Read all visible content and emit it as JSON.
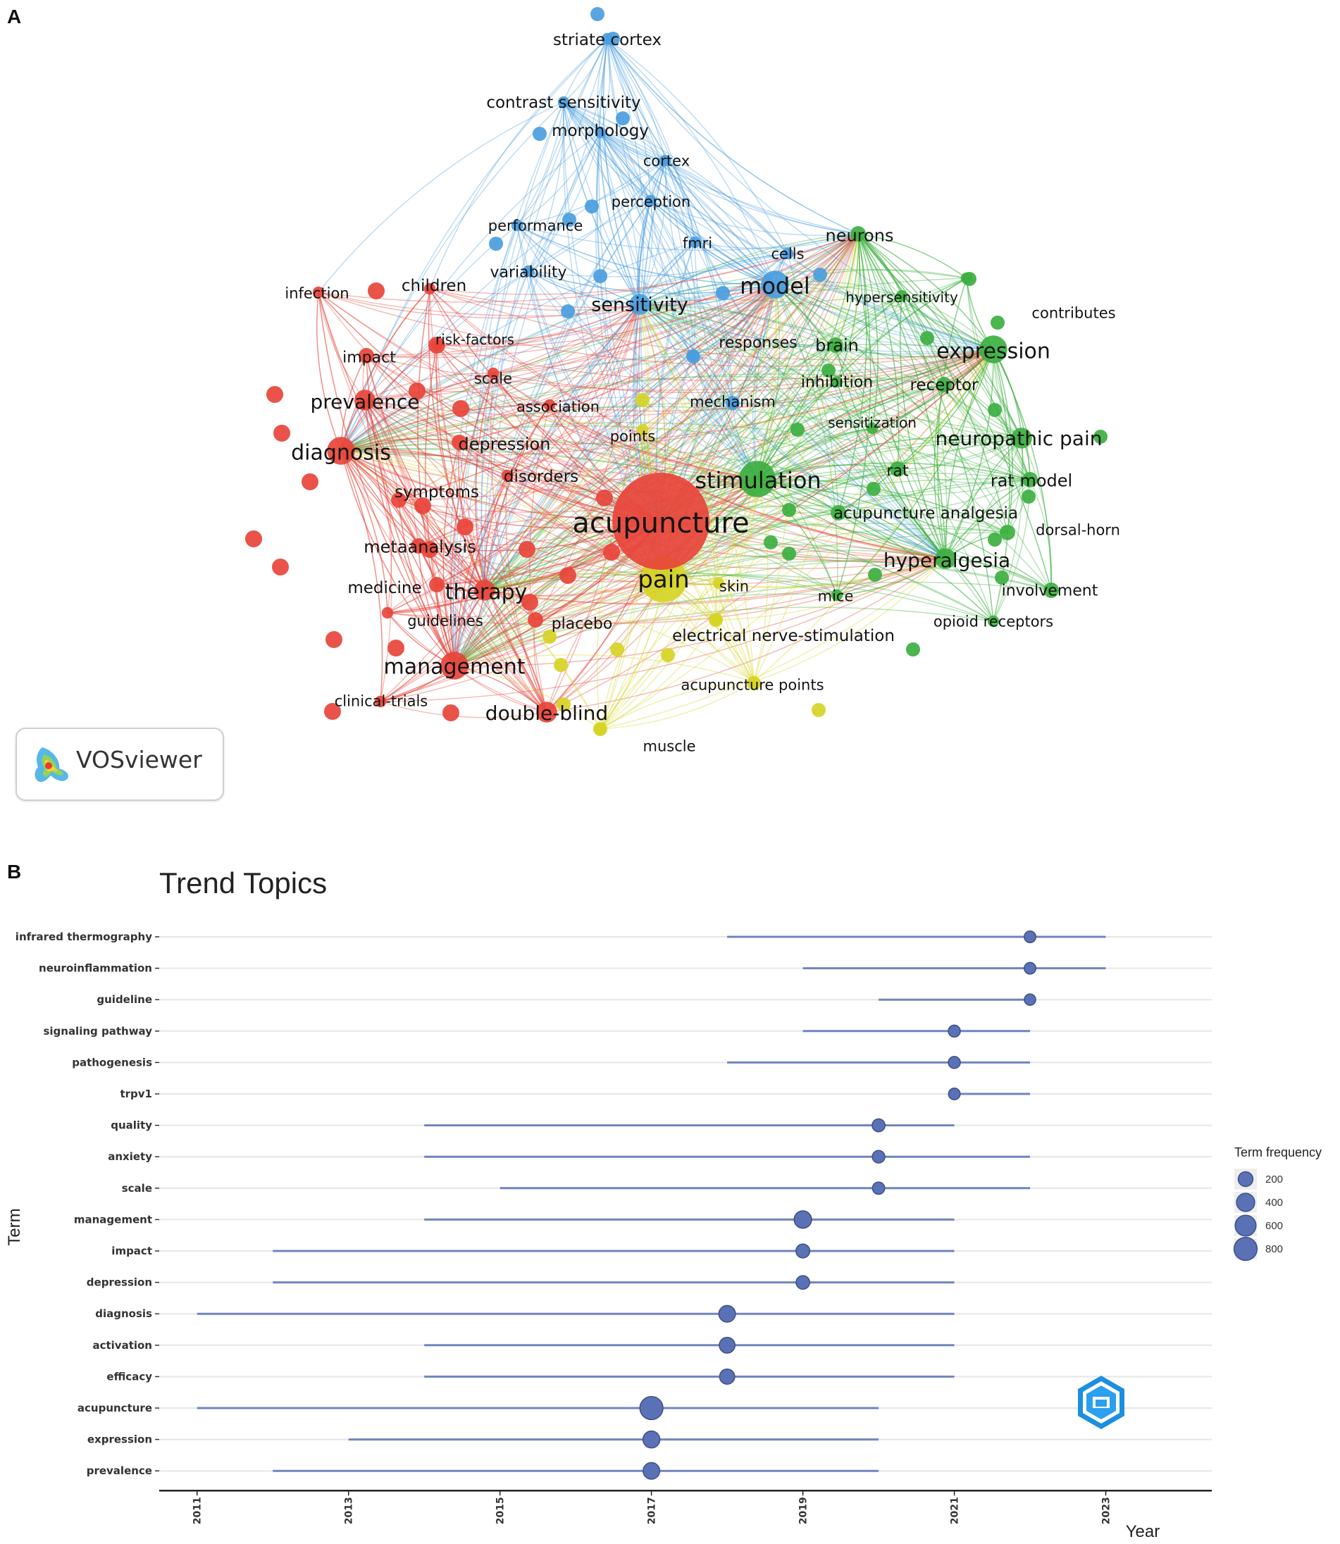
{
  "panels": {
    "a": "A",
    "b": "B"
  },
  "colors": {
    "red": "#e8443a",
    "green": "#3cb040",
    "blue": "#4a9de0",
    "yellow": "#d6d424",
    "trend": "#5a72b5"
  },
  "vosviewer": {
    "label": "VOSviewer",
    "icon": "vosviewer-logo-icon"
  },
  "watermark": {
    "icon": "shield-badge-icon"
  },
  "chart_data": [
    {
      "type": "network",
      "nodes": [
        {
          "id": "acupuncture",
          "label": "acupuncture",
          "cluster": "red",
          "weight": 10
        },
        {
          "id": "pain",
          "label": "pain",
          "cluster": "yellow",
          "weight": 7
        },
        {
          "id": "stimulation",
          "label": "stimulation",
          "cluster": "green",
          "weight": 6
        },
        {
          "id": "model",
          "label": "model",
          "cluster": "blue",
          "weight": 5
        },
        {
          "id": "expression",
          "label": "expression",
          "cluster": "green",
          "weight": 5
        },
        {
          "id": "management",
          "label": "management",
          "cluster": "red",
          "weight": 5
        },
        {
          "id": "diagnosis",
          "label": "diagnosis",
          "cluster": "red",
          "weight": 5
        },
        {
          "id": "prevalence",
          "label": "prevalence",
          "cluster": "red",
          "weight": 4
        },
        {
          "id": "therapy",
          "label": "therapy",
          "cluster": "red",
          "weight": 4
        },
        {
          "id": "hyperalgesia",
          "label": "hyperalgesia",
          "cluster": "green",
          "weight": 4
        },
        {
          "id": "neuropathic-pain",
          "label": "neuropathic pain",
          "cluster": "green",
          "weight": 4
        },
        {
          "id": "double-blind",
          "label": "double-blind",
          "cluster": "red",
          "weight": 4
        },
        {
          "id": "sensitivity",
          "label": "sensitivity",
          "cluster": "blue",
          "weight": 4
        },
        {
          "id": "neurons",
          "label": "neurons",
          "cluster": "green",
          "weight": 3
        },
        {
          "id": "rat-model",
          "label": "rat model",
          "cluster": "green",
          "weight": 3
        },
        {
          "id": "metaanalysis",
          "label": "metaanalysis",
          "cluster": "red",
          "weight": 3
        },
        {
          "id": "contrast-sensitivity",
          "label": "contrast sensitivity",
          "cluster": "blue",
          "weight": 2
        },
        {
          "id": "striate-cortex",
          "label": "striate cortex",
          "cluster": "blue",
          "weight": 2
        },
        {
          "id": "morphology",
          "label": "morphology",
          "cluster": "blue",
          "weight": 2
        },
        {
          "id": "cortex",
          "label": "cortex",
          "cluster": "blue",
          "weight": 2
        },
        {
          "id": "perception",
          "label": "perception",
          "cluster": "blue",
          "weight": 2
        },
        {
          "id": "performance",
          "label": "performance",
          "cluster": "blue",
          "weight": 2
        },
        {
          "id": "fmri",
          "label": "fmri",
          "cluster": "blue",
          "weight": 2
        },
        {
          "id": "cells",
          "label": "cells",
          "cluster": "blue",
          "weight": 2
        },
        {
          "id": "variability",
          "label": "variability",
          "cluster": "blue",
          "weight": 2
        },
        {
          "id": "responses",
          "label": "responses",
          "cluster": "blue",
          "weight": 2
        },
        {
          "id": "mechanism",
          "label": "mechanism",
          "cluster": "blue",
          "weight": 2
        },
        {
          "id": "hypersensitivity",
          "label": "hypersensitivity",
          "cluster": "green",
          "weight": 2
        },
        {
          "id": "contributes",
          "label": "contributes",
          "cluster": "green",
          "weight": 2
        },
        {
          "id": "brain",
          "label": "brain",
          "cluster": "green",
          "weight": 3
        },
        {
          "id": "inhibition",
          "label": "inhibition",
          "cluster": "green",
          "weight": 2
        },
        {
          "id": "receptor",
          "label": "receptor",
          "cluster": "green",
          "weight": 3
        },
        {
          "id": "sensitization",
          "label": "sensitization",
          "cluster": "green",
          "weight": 2
        },
        {
          "id": "rat",
          "label": "rat",
          "cluster": "green",
          "weight": 3
        },
        {
          "id": "acupuncture-analgesia",
          "label": "acupuncture analgesia",
          "cluster": "green",
          "weight": 3
        },
        {
          "id": "dorsal-horn",
          "label": "dorsal-horn",
          "cluster": "green",
          "weight": 3
        },
        {
          "id": "involvement",
          "label": "involvement",
          "cluster": "green",
          "weight": 3
        },
        {
          "id": "mice",
          "label": "mice",
          "cluster": "green",
          "weight": 2
        },
        {
          "id": "opioid-receptors",
          "label": "opioid receptors",
          "cluster": "green",
          "weight": 2
        },
        {
          "id": "infection",
          "label": "infection",
          "cluster": "red",
          "weight": 2
        },
        {
          "id": "children",
          "label": "children",
          "cluster": "red",
          "weight": 2
        },
        {
          "id": "impact",
          "label": "impact",
          "cluster": "red",
          "weight": 3
        },
        {
          "id": "risk-factors",
          "label": "risk-factors",
          "cluster": "red",
          "weight": 2
        },
        {
          "id": "scale",
          "label": "scale",
          "cluster": "red",
          "weight": 2
        },
        {
          "id": "association",
          "label": "association",
          "cluster": "red",
          "weight": 2
        },
        {
          "id": "depression",
          "label": "depression",
          "cluster": "red",
          "weight": 3
        },
        {
          "id": "disorders",
          "label": "disorders",
          "cluster": "red",
          "weight": 2
        },
        {
          "id": "symptoms",
          "label": "symptoms",
          "cluster": "red",
          "weight": 3
        },
        {
          "id": "medicine",
          "label": "medicine",
          "cluster": "red",
          "weight": 3
        },
        {
          "id": "guidelines",
          "label": "guidelines",
          "cluster": "red",
          "weight": 2
        },
        {
          "id": "placebo",
          "label": "placebo",
          "cluster": "red",
          "weight": 3
        },
        {
          "id": "clinical-trials",
          "label": "clinical-trials",
          "cluster": "red",
          "weight": 2
        },
        {
          "id": "points",
          "label": "points",
          "cluster": "yellow",
          "weight": 2
        },
        {
          "id": "skin",
          "label": "skin",
          "cluster": "yellow",
          "weight": 2
        },
        {
          "id": "electrical-nerve-stimulation",
          "label": "electrical nerve-stimulation",
          "cluster": "yellow",
          "weight": 2
        },
        {
          "id": "acupuncture-points",
          "label": "acupuncture points",
          "cluster": "yellow",
          "weight": 2
        },
        {
          "id": "muscle",
          "label": "muscle",
          "cluster": "yellow",
          "weight": 2
        }
      ]
    },
    {
      "type": "dot-range",
      "title": "Trend Topics",
      "ylabel": "Term",
      "xlabel": "Year",
      "xlim": [
        2010.5,
        2024.4
      ],
      "xticks": [
        2011,
        2013,
        2015,
        2017,
        2019,
        2021,
        2023
      ],
      "legend": {
        "title": "Term frequency",
        "position": "right",
        "values": [
          200,
          400,
          600,
          800
        ]
      },
      "terms": [
        {
          "term": "infrared thermography",
          "start": 2018,
          "median": 2022,
          "end": 2023,
          "freq": 80
        },
        {
          "term": "neuroinflammation",
          "start": 2019,
          "median": 2022,
          "end": 2023,
          "freq": 80
        },
        {
          "term": "guideline",
          "start": 2020,
          "median": 2022,
          "end": 2022,
          "freq": 70
        },
        {
          "term": "signaling pathway",
          "start": 2019,
          "median": 2021,
          "end": 2022,
          "freq": 90
        },
        {
          "term": "pathogenesis",
          "start": 2018,
          "median": 2021,
          "end": 2022,
          "freq": 90
        },
        {
          "term": "trpv1",
          "start": 2021,
          "median": 2021,
          "end": 2022,
          "freq": 80
        },
        {
          "term": "quality",
          "start": 2014,
          "median": 2020,
          "end": 2021,
          "freq": 120
        },
        {
          "term": "anxiety",
          "start": 2014,
          "median": 2020,
          "end": 2022,
          "freq": 110
        },
        {
          "term": "scale",
          "start": 2015,
          "median": 2020,
          "end": 2022,
          "freq": 100
        },
        {
          "term": "management",
          "start": 2014,
          "median": 2019,
          "end": 2021,
          "freq": 350
        },
        {
          "term": "impact",
          "start": 2012,
          "median": 2019,
          "end": 2021,
          "freq": 160
        },
        {
          "term": "depression",
          "start": 2012,
          "median": 2019,
          "end": 2021,
          "freq": 150
        },
        {
          "term": "diagnosis",
          "start": 2011,
          "median": 2018,
          "end": 2021,
          "freq": 300
        },
        {
          "term": "activation",
          "start": 2014,
          "median": 2018,
          "end": 2021,
          "freq": 250
        },
        {
          "term": "efficacy",
          "start": 2014,
          "median": 2018,
          "end": 2021,
          "freq": 220
        },
        {
          "term": "acupuncture",
          "start": 2011,
          "median": 2017,
          "end": 2020,
          "freq": 800
        },
        {
          "term": "expression",
          "start": 2013,
          "median": 2017,
          "end": 2020,
          "freq": 320
        },
        {
          "term": "prevalence",
          "start": 2012,
          "median": 2017,
          "end": 2020,
          "freq": 300
        }
      ]
    }
  ]
}
